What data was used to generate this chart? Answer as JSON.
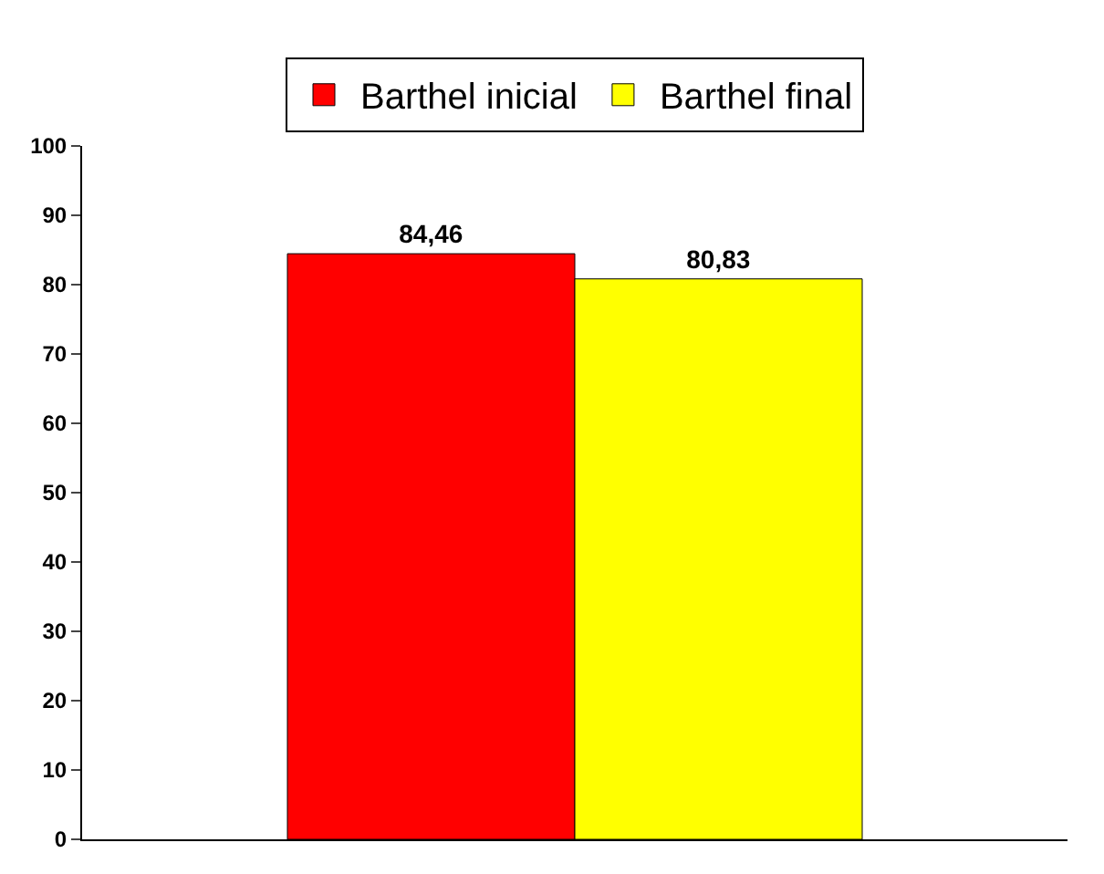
{
  "chart_data": {
    "type": "bar",
    "categories": [
      null
    ],
    "series": [
      {
        "name": "Barthel inicial",
        "color": "#ff0000",
        "values": [
          84.46
        ],
        "value_labels": [
          "84,46"
        ]
      },
      {
        "name": "Barthel final",
        "color": "#ffff00",
        "values": [
          80.83
        ],
        "value_labels": [
          "80,83"
        ]
      }
    ],
    "ylim": [
      0,
      100
    ],
    "yticks": [
      0,
      10,
      20,
      30,
      40,
      50,
      60,
      70,
      80,
      90,
      100
    ],
    "legend": "top"
  }
}
